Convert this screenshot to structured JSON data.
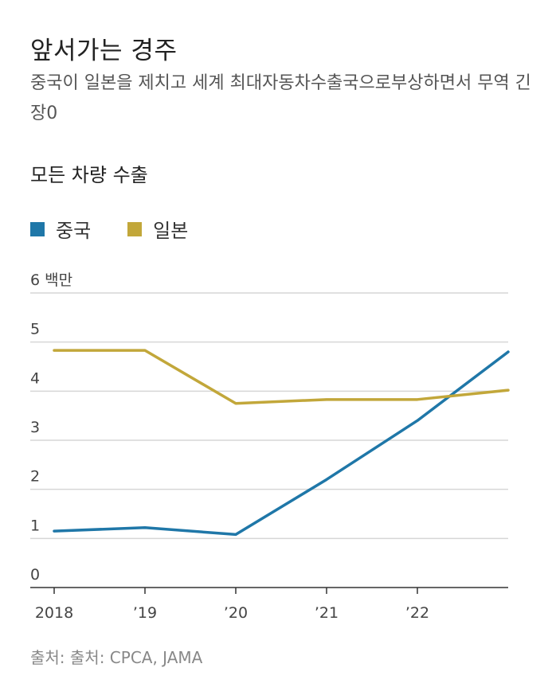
{
  "title": "앞서가는 경주",
  "subtitle": "중국이 일본을 제치고 세계 최대자동차수출국으로부상하면서 무역 긴장0",
  "chart_heading": "모든 차량 수출",
  "source": "출처: 출처: CPCA, JAMA",
  "colors": {
    "china": "#1f77a8",
    "japan": "#c2a73a",
    "grid": "#d6d6d6",
    "axis": "#333333"
  },
  "chart_data": {
    "type": "line",
    "title": "모든 차량 수출",
    "xlabel": "",
    "ylabel": "",
    "x": [
      2018,
      2019,
      2020,
      2021,
      2022,
      2023
    ],
    "xlim": [
      2018,
      2023
    ],
    "ylim": [
      0,
      6
    ],
    "y_ticks": [
      "0",
      "1",
      "2",
      "3",
      "4",
      "5",
      "6 백만"
    ],
    "x_ticks": [
      {
        "x": 2018,
        "label": "2018"
      },
      {
        "x": 2019,
        "label": "’19"
      },
      {
        "x": 2020,
        "label": "’20"
      },
      {
        "x": 2021,
        "label": "’21"
      },
      {
        "x": 2022,
        "label": "’22"
      }
    ],
    "grid": true,
    "legend_position": "top-left",
    "series": [
      {
        "name": "중국",
        "color": "#1f77a8",
        "values": [
          1.15,
          1.22,
          1.08,
          2.2,
          3.4,
          4.8
        ]
      },
      {
        "name": "일본",
        "color": "#c2a73a",
        "values": [
          4.83,
          4.83,
          3.75,
          3.83,
          3.83,
          4.02
        ]
      }
    ]
  }
}
